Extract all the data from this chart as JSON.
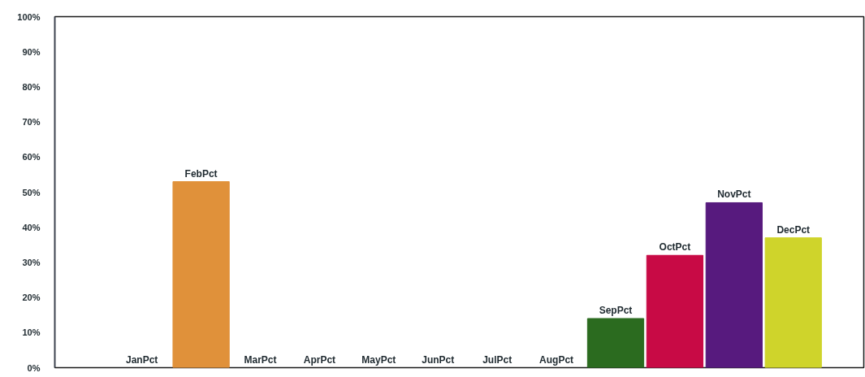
{
  "chart_data": {
    "type": "bar",
    "categories": [
      "JanPct",
      "FebPct",
      "MarPct",
      "AprPct",
      "MayPct",
      "JunPct",
      "JulPct",
      "AugPct",
      "SepPct",
      "OctPct",
      "NovPct",
      "DecPct"
    ],
    "values": [
      0,
      53,
      0,
      0,
      0,
      0,
      0,
      0,
      14,
      32,
      47,
      37
    ],
    "colors": [
      null,
      "#e0913a",
      null,
      null,
      null,
      null,
      null,
      null,
      "#2b6b1f",
      "#c80a45",
      "#571a7e",
      "#cfd42b"
    ],
    "ylim": [
      0,
      100
    ],
    "yticks": [
      {
        "value": 0,
        "label": "0%"
      },
      {
        "value": 10,
        "label": "10%"
      },
      {
        "value": 20,
        "label": "20%"
      },
      {
        "value": 30,
        "label": "30%"
      },
      {
        "value": 40,
        "label": "40%"
      },
      {
        "value": 50,
        "label": "50%"
      },
      {
        "value": 60,
        "label": "60%"
      },
      {
        "value": 70,
        "label": "70%"
      },
      {
        "value": 80,
        "label": "80%"
      },
      {
        "value": 90,
        "label": "90%"
      },
      {
        "value": 100,
        "label": "100%"
      }
    ],
    "grid": false
  }
}
